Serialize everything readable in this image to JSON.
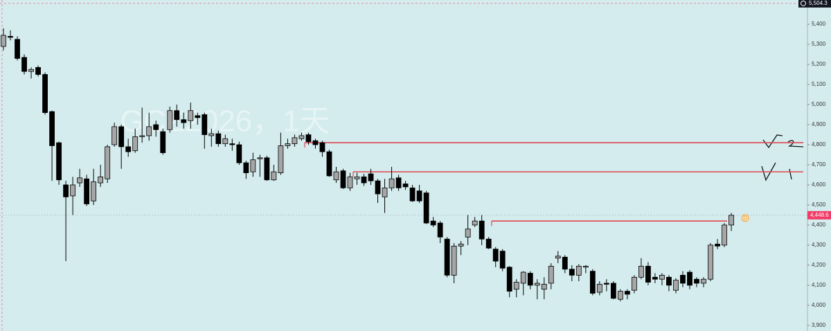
{
  "chart_data": {
    "type": "candlestick",
    "watermark": "GCZ2026，1天",
    "up_color": "#a6a6a6",
    "down_color": "#000000",
    "level_color": "#e0454f",
    "ylim": [
      3872,
      5521
    ],
    "yticks": [
      {
        "value": 5400,
        "label": "5,400"
      },
      {
        "value": 5300,
        "label": "5,300"
      },
      {
        "value": 5200,
        "label": "5,200"
      },
      {
        "value": 5100,
        "label": "5,100"
      },
      {
        "value": 5000,
        "label": "5,000"
      },
      {
        "value": 4900,
        "label": "4,900"
      },
      {
        "value": 4800,
        "label": "4,800"
      },
      {
        "value": 4700,
        "label": "4,700"
      },
      {
        "value": 4600,
        "label": "4,600"
      },
      {
        "value": 4500,
        "label": "4,500"
      },
      {
        "value": 4400,
        "label": "4,400"
      },
      {
        "value": 4300,
        "label": "4,300"
      },
      {
        "value": 4200,
        "label": "4,200"
      },
      {
        "value": 4100,
        "label": "4,100"
      },
      {
        "value": 4000,
        "label": "4,000"
      },
      {
        "value": 3900,
        "label": "3,900"
      }
    ],
    "crosshair_price": {
      "value": 5504.3,
      "label": "5,504.3"
    },
    "last_price": {
      "value": 4448.6,
      "label": "4,448.6"
    },
    "session_marker": "D",
    "levels": [
      4810,
      4665,
      4420
    ],
    "open": [
      5290,
      5340,
      5325,
      5235,
      5165,
      5185,
      5150,
      4965,
      4810,
      4600,
      4545,
      4610,
      4630,
      4520,
      4610,
      4630,
      4800,
      4890,
      4790,
      4770,
      4840,
      4845,
      4900,
      4865,
      4875,
      4970,
      4925,
      4920,
      4945,
      4950,
      4845,
      4855,
      4805,
      4805,
      4800,
      4710,
      4665,
      4730,
      4735,
      4625,
      4660,
      4795,
      4805,
      4830,
      4850,
      4820,
      4810,
      4765,
      4625,
      4670,
      4585,
      4630,
      4640,
      4655,
      4620,
      4540,
      4585,
      4635,
      4605,
      4585,
      4570,
      4560,
      4420,
      4410,
      4330,
      4150,
      4295,
      4340,
      4400,
      4420,
      4330,
      4280,
      4270,
      4190,
      4080,
      4110,
      4160,
      4100,
      4080,
      4110,
      4235,
      4240,
      4180,
      4150,
      4190,
      4170,
      4065,
      4110,
      4110,
      4030,
      4070,
      4075,
      4140,
      4195,
      4140,
      4130,
      4140,
      4075,
      4150,
      4165,
      4130,
      4110,
      4130,
      4305,
      4300,
      4400
    ],
    "high": [
      5380,
      5370,
      5340,
      5250,
      5185,
      5195,
      5160,
      4970,
      4815,
      4620,
      4640,
      4680,
      4650,
      4680,
      4700,
      4800,
      4910,
      4900,
      4830,
      4880,
      4985,
      4960,
      4920,
      4880,
      4990,
      5000,
      4960,
      5010,
      4960,
      4960,
      4880,
      4870,
      4850,
      4830,
      4815,
      4720,
      4760,
      4750,
      4745,
      4700,
      4860,
      4830,
      4850,
      4860,
      4860,
      4830,
      4820,
      4775,
      4690,
      4680,
      4660,
      4660,
      4655,
      4680,
      4630,
      4630,
      4690,
      4650,
      4620,
      4600,
      4600,
      4570,
      4440,
      4420,
      4340,
      4310,
      4320,
      4450,
      4440,
      4450,
      4340,
      4290,
      4280,
      4195,
      4130,
      4170,
      4170,
      4130,
      4140,
      4210,
      4270,
      4250,
      4200,
      4205,
      4200,
      4180,
      4120,
      4130,
      4120,
      4080,
      4080,
      4150,
      4235,
      4215,
      4160,
      4160,
      4150,
      4135,
      4170,
      4175,
      4140,
      4140,
      4310,
      4330,
      4410,
      4460
    ],
    "low": [
      5270,
      5320,
      5220,
      5150,
      5130,
      5140,
      4950,
      4620,
      4600,
      4220,
      4450,
      4590,
      4495,
      4500,
      4590,
      4610,
      4790,
      4680,
      4740,
      4760,
      4810,
      4820,
      4840,
      4750,
      4860,
      4890,
      4880,
      4880,
      4900,
      4780,
      4790,
      4790,
      4790,
      4770,
      4700,
      4630,
      4640,
      4640,
      4620,
      4620,
      4650,
      4780,
      4790,
      4820,
      4800,
      4780,
      4740,
      4640,
      4610,
      4580,
      4570,
      4600,
      4595,
      4600,
      4510,
      4460,
      4570,
      4570,
      4575,
      4515,
      4510,
      4405,
      4390,
      4310,
      4140,
      4110,
      4250,
      4300,
      4390,
      4300,
      4280,
      4190,
      4170,
      4040,
      4040,
      4050,
      4080,
      4030,
      4030,
      4080,
      4210,
      4160,
      4120,
      4120,
      4160,
      4050,
      4050,
      4070,
      4030,
      4020,
      4030,
      4060,
      4130,
      4100,
      4110,
      4100,
      4070,
      4060,
      4090,
      4080,
      4090,
      4090,
      4120,
      4280,
      4290,
      4370
    ],
    "close": [
      5345,
      5335,
      5230,
      5165,
      5175,
      5150,
      4960,
      4795,
      4625,
      4540,
      4600,
      4635,
      4505,
      4615,
      4640,
      4790,
      4890,
      4790,
      4765,
      4840,
      4845,
      4890,
      4875,
      4760,
      4970,
      4925,
      4910,
      4970,
      4935,
      4850,
      4855,
      4805,
      4830,
      4800,
      4710,
      4660,
      4725,
      4735,
      4625,
      4665,
      4795,
      4805,
      4835,
      4845,
      4815,
      4800,
      4765,
      4645,
      4665,
      4585,
      4640,
      4640,
      4610,
      4620,
      4555,
      4585,
      4630,
      4585,
      4590,
      4520,
      4520,
      4410,
      4400,
      4340,
      4150,
      4295,
      4305,
      4380,
      4420,
      4330,
      4285,
      4220,
      4185,
      4070,
      4115,
      4165,
      4100,
      4110,
      4105,
      4195,
      4245,
      4180,
      4150,
      4195,
      4195,
      4060,
      4105,
      4105,
      4035,
      4070,
      4055,
      4140,
      4195,
      4115,
      4130,
      4150,
      4100,
      4125,
      4110,
      4100,
      4110,
      4130,
      4300,
      4295,
      4400,
      4448.6
    ]
  }
}
